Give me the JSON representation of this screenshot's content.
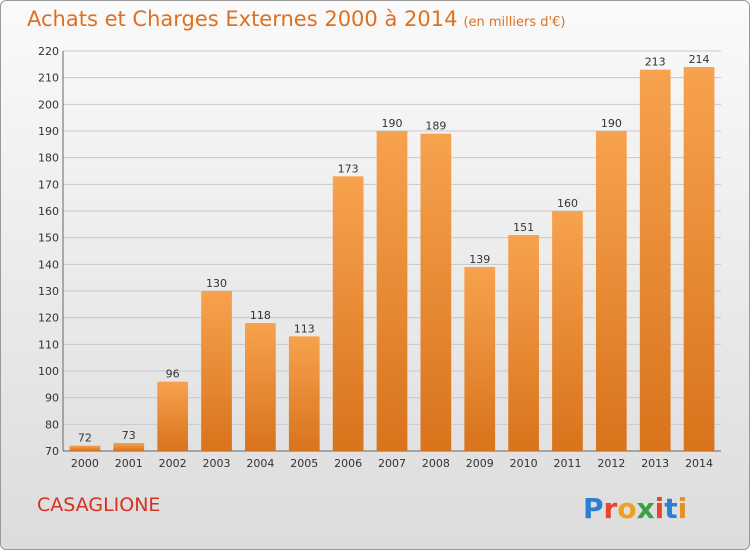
{
  "header": {
    "title": "Achats et Charges Externes 2000 à 2014",
    "unit": "(en milliers d'€)"
  },
  "footer": {
    "commune": "CASAGLIONE",
    "logo": {
      "text": "Proxiti",
      "letter_colors": [
        "#2a7fd0",
        "#e8442e",
        "#f0a020",
        "#3aa040",
        "#e8442e",
        "#2a7fd0",
        "#e89020"
      ]
    }
  },
  "colors": {
    "bar_light": "#f7a24e",
    "bar_dark": "#d9731c",
    "title": "#e07020",
    "commune": "#d83020"
  },
  "chart_data": {
    "type": "bar",
    "categories": [
      "2000",
      "2001",
      "2002",
      "2003",
      "2004",
      "2005",
      "2006",
      "2007",
      "2008",
      "2009",
      "2010",
      "2011",
      "2012",
      "2013",
      "2014"
    ],
    "values": [
      72,
      73,
      96,
      130,
      118,
      113,
      173,
      190,
      189,
      139,
      151,
      160,
      190,
      213,
      214
    ],
    "title": "Achats et Charges Externes 2000 à 2014",
    "subtitle": "(en milliers d'€)",
    "xlabel": "",
    "ylabel": "",
    "ylim": [
      70,
      220
    ],
    "yticks": [
      70,
      80,
      90,
      100,
      110,
      120,
      130,
      140,
      150,
      160,
      170,
      180,
      190,
      200,
      210,
      220
    ],
    "grid": true,
    "data_labels": true
  }
}
